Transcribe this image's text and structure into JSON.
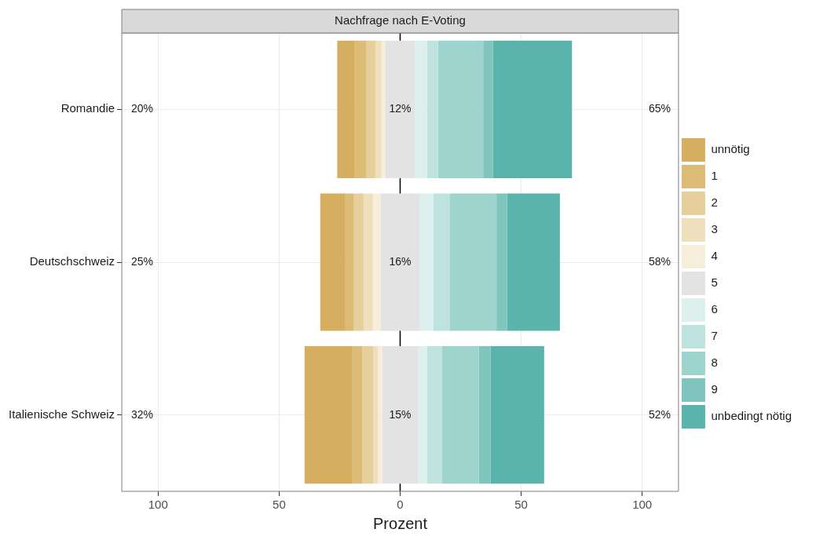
{
  "chart_data": {
    "type": "bar",
    "orientation": "horizontal",
    "title": "Nachfrage nach E-Voting",
    "xlabel": "Prozent",
    "categories": [
      "Romandie",
      "Deutschschweiz",
      "Italienische Schweiz"
    ],
    "series": [
      {
        "name": "unnötig",
        "color": "#d6ae5f",
        "base": [
          -26,
          -33,
          -39.5
        ],
        "values": [
          7.3,
          10.4,
          19.8
        ]
      },
      {
        "name": "1",
        "color": "#dcbb76",
        "base": [
          -18.7,
          -22.6,
          -19.7
        ],
        "values": [
          4.6,
          3.5,
          4.0
        ]
      },
      {
        "name": "2",
        "color": "#e6cf9d",
        "base": [
          -14.1,
          -19.1,
          -15.7
        ],
        "values": [
          4.0,
          4.0,
          4.6
        ]
      },
      {
        "name": "3",
        "color": "#eedfbd",
        "base": [
          -10.1,
          -15.1,
          -11.1
        ],
        "values": [
          2.4,
          3.8,
          2.0
        ]
      },
      {
        "name": "4",
        "color": "#f6eddb",
        "base": [
          -7.7,
          -11.3,
          -9.1
        ],
        "values": [
          1.7,
          3.3,
          1.6
        ]
      },
      {
        "name": "5",
        "color": "#e3e3e3",
        "base": [
          -6,
          -8,
          -7.5
        ],
        "values": [
          12,
          16,
          15
        ],
        "value_labels": [
          "12%",
          "16%",
          "15%"
        ]
      },
      {
        "name": "6",
        "color": "#ddf0ed",
        "base": [
          6,
          8,
          7.5
        ],
        "values": [
          5.1,
          5.8,
          3.7
        ]
      },
      {
        "name": "7",
        "color": "#bee3de",
        "base": [
          11.1,
          13.8,
          11.2
        ],
        "values": [
          4.6,
          6.6,
          6.1
        ]
      },
      {
        "name": "8",
        "color": "#9ed4ce",
        "base": [
          15.7,
          20.4,
          17.3
        ],
        "values": [
          18.6,
          19.4,
          15.2
        ]
      },
      {
        "name": "9",
        "color": "#80c5bd",
        "base": [
          34.3,
          39.8,
          32.5
        ],
        "values": [
          4.1,
          4.4,
          4.8
        ]
      },
      {
        "name": "unbedingt nötig",
        "color": "#5ab4ac",
        "base": [
          38.4,
          44.2,
          37.3
        ],
        "values": [
          32.6,
          21.8,
          22.2
        ]
      }
    ],
    "xlim": [
      -115,
      115
    ],
    "xticks": [
      {
        "value": -100,
        "label": "100"
      },
      {
        "value": -50,
        "label": "50"
      },
      0,
      50,
      100
    ],
    "ref_lines": [
      {
        "axis": "x",
        "value": 0,
        "color": "#000000"
      }
    ],
    "annotations": [
      "20%",
      "65%",
      "25%",
      "58%",
      "32%",
      "52%"
    ],
    "grid": true,
    "legend": "right"
  }
}
